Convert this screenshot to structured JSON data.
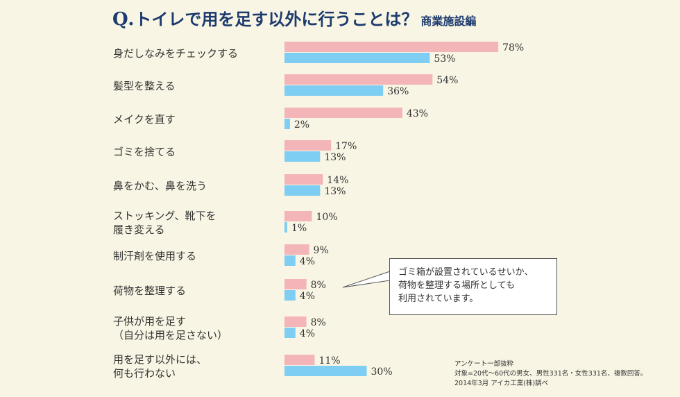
{
  "title": {
    "question": "Q.",
    "main": "トイレで用を足す以外に行うことは？",
    "subtitle": "商業施設編"
  },
  "callout": {
    "lines": [
      "ゴミ箱が設置されているせいか、",
      "荷物を整理する場所としても",
      "利用されています。"
    ]
  },
  "notes": {
    "lines": [
      "アンケート一部抜粋",
      "対象=20代～60代の男女、男性331名・女性331名、複数回答。",
      "2014年3月 アイカ工業(株)調べ"
    ]
  },
  "colors": {
    "series_a": "#f4b5b8",
    "series_b": "#7ecdf3",
    "label_text": "#333333",
    "title": "#1c3a6e",
    "background": "#f8f5e4"
  },
  "chart_data": {
    "type": "bar",
    "orientation": "horizontal",
    "categories": [
      [
        "身だしなみをチェックする"
      ],
      [
        "髪型を整える"
      ],
      [
        "メイクを直す"
      ],
      [
        "ゴミを捨てる"
      ],
      [
        "鼻をかむ、鼻を洗う"
      ],
      [
        "ストッキング、靴下を",
        "履き変える"
      ],
      [
        "制汗剤を使用する"
      ],
      [
        "荷物を整理する"
      ],
      [
        "子供が用を足す",
        "（自分は用を足さない）"
      ],
      [
        "用を足す以外には、",
        "何も行わない"
      ]
    ],
    "series": [
      {
        "color": "#f4b5b8",
        "values": [
          78,
          54,
          43,
          17,
          14,
          10,
          9,
          8,
          8,
          11
        ]
      },
      {
        "color": "#7ecdf3",
        "values": [
          53,
          36,
          2,
          13,
          13,
          1,
          4,
          4,
          4,
          30
        ]
      }
    ],
    "value_suffix": "%",
    "xlim": [
      0,
      100
    ],
    "grid": false,
    "legend": "none"
  }
}
